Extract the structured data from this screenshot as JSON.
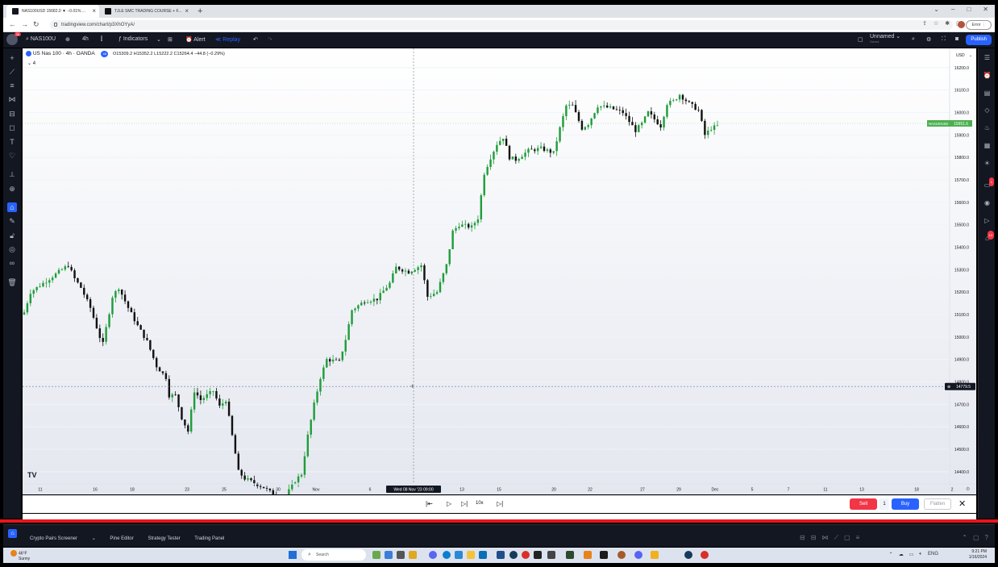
{
  "browser": {
    "tabs": [
      {
        "label": "NAS100USD 15682.0 ▼ −0.01% ...",
        "active": true
      },
      {
        "label": "TJLE SMC TRADING COURSE + F...",
        "active": false
      }
    ],
    "url": "tradingview.com/chart/p3XhOYyA/",
    "error_label": "Error"
  },
  "tv_toolbar": {
    "notification_count": "36",
    "symbol": "NAS100U",
    "interval": "4h",
    "indicators_label": "Indicators",
    "alert_label": "Alert",
    "replay_label": "Replay",
    "layout_name": "Unnamed",
    "layout_sub": "Saved",
    "publish_label": "Publish"
  },
  "legend": {
    "symbol_title": "US Nas 100 · 4h · OANDA",
    "exchange_badge": "48",
    "ohlc": "O15309.2  H15352.2  L15222.2  C15264.4  −44.8 (−0.29%)",
    "indicator_count": "4"
  },
  "right_sidebar": {
    "alerts_badge": "1",
    "notifications_badge": "10"
  },
  "chart_data": {
    "type": "candlestick",
    "currency": "USD",
    "y_ticks": [
      16200,
      16100,
      16000,
      15900,
      15800,
      15700,
      15600,
      15500,
      15400,
      15300,
      15200,
      15100,
      15000,
      14900,
      14800,
      14700,
      14600,
      14500,
      14400
    ],
    "y_tick_labels": [
      "16200.0",
      "16100.0",
      "16000.0",
      "15900.0",
      "15800.0",
      "15700.0",
      "15600.0",
      "15500.0",
      "15400.0",
      "15300.0",
      "15200.0",
      "15100.0",
      "15000.0",
      "14900.0",
      "14800.0",
      "14700.0",
      "14600.0",
      "14500.0",
      "14400.0"
    ],
    "ylim": [
      14360,
      16300
    ],
    "x_labels": [
      "11",
      "16",
      "18",
      "23",
      "25",
      "30",
      "Nov",
      "6",
      "Wed 08 Nov '23   09:00",
      "13",
      "15",
      "20",
      "22",
      "27",
      "29",
      "Dec",
      "5",
      "7",
      "11",
      "13",
      "18",
      "2"
    ],
    "price_label": {
      "symbol": "NAS100USD",
      "value": "15951.6",
      "price": 15951.6
    },
    "crosshair": {
      "price_label": "14779.5",
      "price": 14779.5,
      "time_label": "Wed 08 Nov '23   09:00"
    },
    "watermark": "TV",
    "anchors": [
      [
        0,
        15110
      ],
      [
        2,
        15200
      ],
      [
        6,
        15240
      ],
      [
        10,
        15280
      ],
      [
        14,
        15320
      ],
      [
        16,
        15260
      ],
      [
        18,
        15220
      ],
      [
        21,
        15130
      ],
      [
        24,
        15000
      ],
      [
        25,
        14970
      ],
      [
        28,
        15180
      ],
      [
        30,
        15220
      ],
      [
        33,
        15130
      ],
      [
        36,
        15050
      ],
      [
        39,
        14980
      ],
      [
        42,
        14870
      ],
      [
        45,
        14820
      ],
      [
        46,
        14740
      ],
      [
        48,
        14740
      ],
      [
        50,
        14640
      ],
      [
        52,
        14580
      ],
      [
        54,
        14760
      ],
      [
        56,
        14720
      ],
      [
        60,
        14760
      ],
      [
        62,
        14690
      ],
      [
        64,
        14720
      ],
      [
        66,
        14560
      ],
      [
        68,
        14400
      ],
      [
        70,
        14370
      ],
      [
        76,
        14330
      ],
      [
        82,
        14270
      ],
      [
        86,
        14360
      ],
      [
        88,
        14390
      ],
      [
        90,
        14560
      ],
      [
        92,
        14700
      ],
      [
        94,
        14820
      ],
      [
        96,
        14900
      ],
      [
        100,
        14890
      ],
      [
        102,
        14990
      ],
      [
        104,
        15120
      ],
      [
        108,
        15160
      ],
      [
        112,
        15170
      ],
      [
        116,
        15240
      ],
      [
        118,
        15310
      ],
      [
        122,
        15290
      ],
      [
        126,
        15320
      ],
      [
        128,
        15180
      ],
      [
        131,
        15200
      ],
      [
        134,
        15320
      ],
      [
        136,
        15470
      ],
      [
        138,
        15500
      ],
      [
        142,
        15490
      ],
      [
        144,
        15530
      ],
      [
        146,
        15730
      ],
      [
        148,
        15800
      ],
      [
        150,
        15860
      ],
      [
        152,
        15890
      ],
      [
        154,
        15800
      ],
      [
        156,
        15790
      ],
      [
        160,
        15830
      ],
      [
        164,
        15840
      ],
      [
        168,
        15820
      ],
      [
        170,
        15930
      ],
      [
        172,
        16030
      ],
      [
        174,
        16030
      ],
      [
        177,
        15930
      ],
      [
        179,
        15950
      ],
      [
        182,
        16030
      ],
      [
        186,
        16020
      ],
      [
        190,
        16000
      ],
      [
        194,
        15920
      ],
      [
        196,
        15950
      ],
      [
        198,
        16000
      ],
      [
        202,
        15940
      ],
      [
        204,
        16040
      ],
      [
        206,
        16050
      ],
      [
        208,
        16080
      ],
      [
        211,
        16040
      ],
      [
        214,
        16010
      ],
      [
        216,
        15900
      ],
      [
        218,
        15930
      ],
      [
        220,
        15940
      ]
    ],
    "candle_count": 221
  },
  "replay": {
    "speed": "10x",
    "sell_label": "Sell",
    "qty": "1",
    "buy_label": "Buy",
    "flatten_label": "Flatten"
  },
  "bottom_panel": {
    "tabs": [
      "Crypto Pairs Screener",
      "Pine Editor",
      "Strategy Tester",
      "Trading Panel"
    ]
  },
  "taskbar": {
    "weather_temp": "46°F",
    "weather_desc": "Sunny",
    "search_placeholder": "Search",
    "lang": "ENG",
    "time": "9:21 PM",
    "date": "1/16/2024"
  }
}
